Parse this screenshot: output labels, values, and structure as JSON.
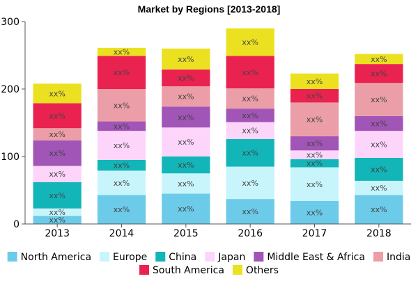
{
  "chart_data": {
    "type": "bar",
    "stacked": true,
    "title": "Market by Regions [2013-2018]",
    "xlabel": "",
    "ylabel": "",
    "ylim": [
      0,
      300
    ],
    "yticks": [
      0,
      100,
      200,
      300
    ],
    "categories": [
      "2013",
      "2014",
      "2015",
      "2016",
      "2017",
      "2018"
    ],
    "segment_label": "xx%",
    "grid": false,
    "legend_position": "bottom",
    "series": [
      {
        "name": "North America",
        "color": "#6ccbe8",
        "values": [
          12,
          43,
          45,
          37,
          34,
          43
        ]
      },
      {
        "name": "Europe",
        "color": "#c8f5fb",
        "values": [
          11,
          36,
          30,
          48,
          50,
          21
        ]
      },
      {
        "name": "China",
        "color": "#12b5b8",
        "values": [
          39,
          16,
          25,
          41,
          12,
          34
        ]
      },
      {
        "name": "Japan",
        "color": "#fdd5fb",
        "values": [
          24,
          43,
          43,
          25,
          13,
          40
        ]
      },
      {
        "name": "Middle East & Africa",
        "color": "#a155b6",
        "values": [
          38,
          14,
          31,
          20,
          21,
          22
        ]
      },
      {
        "name": "India",
        "color": "#eb9ea7",
        "values": [
          18,
          48,
          30,
          30,
          50,
          49
        ]
      },
      {
        "name": "South America",
        "color": "#ea2250",
        "values": [
          37,
          49,
          25,
          48,
          20,
          28
        ]
      },
      {
        "name": "Others",
        "color": "#ebe120",
        "values": [
          29,
          12,
          31,
          41,
          23,
          15
        ]
      }
    ]
  }
}
